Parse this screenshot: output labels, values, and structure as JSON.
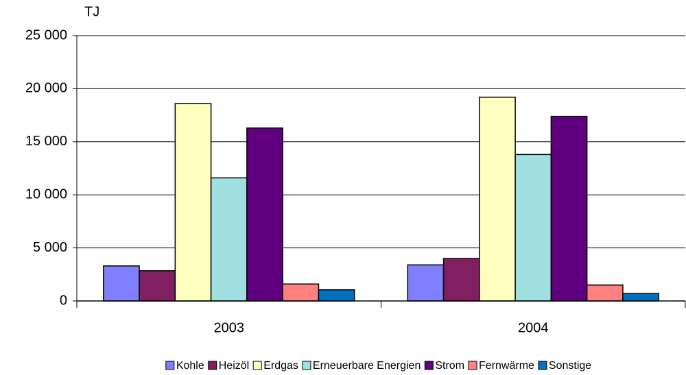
{
  "chart_data": {
    "type": "bar",
    "y_label": "TJ",
    "categories": [
      "2003",
      "2004"
    ],
    "series": [
      {
        "name": "Kohle",
        "color": "#8080ff",
        "values": [
          3300,
          3400
        ]
      },
      {
        "name": "Heizöl",
        "color": "#802060",
        "values": [
          2850,
          4000
        ]
      },
      {
        "name": "Erdgas",
        "color": "#ffffc0",
        "values": [
          18600,
          19200
        ]
      },
      {
        "name": "Erneuerbare Energien",
        "color": "#a0e0e0",
        "values": [
          11600,
          13800
        ]
      },
      {
        "name": "Strom",
        "color": "#600080",
        "values": [
          16300,
          17400
        ]
      },
      {
        "name": "Fernwärme",
        "color": "#ff8080",
        "values": [
          1600,
          1500
        ]
      },
      {
        "name": "Sonstige",
        "color": "#0070c0",
        "values": [
          1050,
          700
        ]
      }
    ],
    "ylim": [
      0,
      25000
    ],
    "yticks": [
      0,
      {
        "value": 5000,
        "label": "5 000"
      },
      {
        "value": 10000,
        "label": "10 000"
      },
      {
        "value": 15000,
        "label": "15 000"
      },
      {
        "value": 20000,
        "label": "20 000"
      },
      {
        "value": 25000,
        "label": "25 000"
      }
    ],
    "grid": true,
    "legend": "bottom"
  }
}
